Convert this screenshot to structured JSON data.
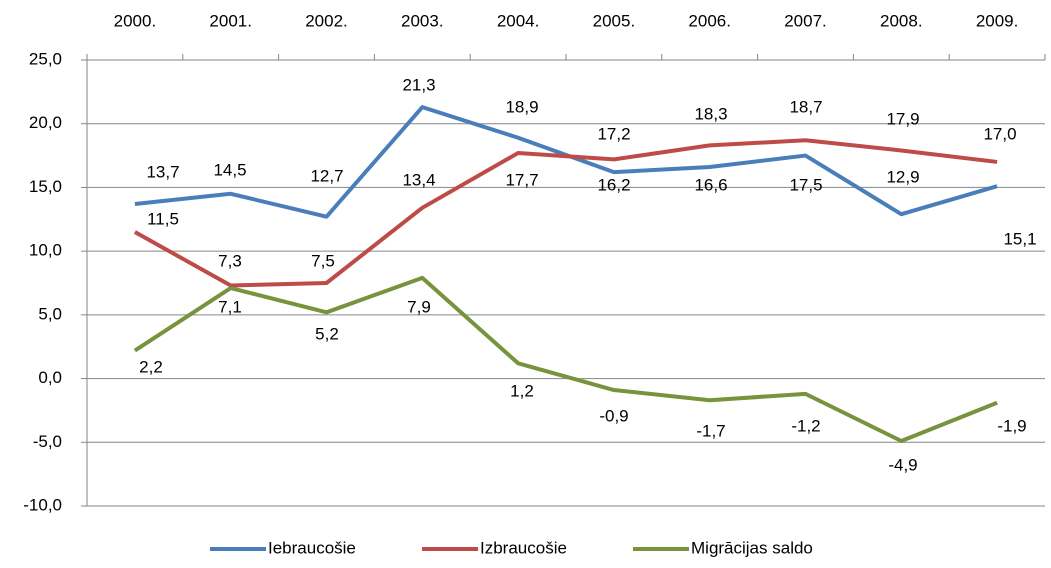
{
  "chart_data": {
    "type": "line",
    "categories": [
      "2000.",
      "2001.",
      "2002.",
      "2003.",
      "2004.",
      "2005.",
      "2006.",
      "2007.",
      "2008.",
      "2009."
    ],
    "series": [
      {
        "name": "Iebraucošie",
        "color": "#4a7ebb",
        "values": [
          13.7,
          14.5,
          12.7,
          21.3,
          18.9,
          16.2,
          16.6,
          17.5,
          12.9,
          15.1
        ],
        "value_labels": [
          "13,7",
          "14,5",
          "12,7",
          "21,3",
          "18,9",
          "16,2",
          "16,6",
          "17,5",
          "12,9",
          "15,1"
        ]
      },
      {
        "name": "Izbraucošie",
        "color": "#be4b48",
        "values": [
          11.5,
          7.3,
          7.5,
          13.4,
          17.7,
          17.2,
          18.3,
          18.7,
          17.9,
          17.0
        ],
        "value_labels": [
          "11,5",
          "7,3",
          "7,5",
          "13,4",
          "17,7",
          "17,2",
          "18,3",
          "18,7",
          "17,9",
          "17,0"
        ]
      },
      {
        "name": "Migrācijas saldo",
        "color": "#77933c",
        "values": [
          2.2,
          7.1,
          5.2,
          7.9,
          1.2,
          -0.9,
          -1.7,
          -1.2,
          -4.9,
          -1.9
        ],
        "value_labels": [
          "2,2",
          "7,1",
          "5,2",
          "7,9",
          "1,2",
          "-0,9",
          "-1,7",
          "-1,2",
          "-4,9",
          "-1,9"
        ]
      }
    ],
    "ylim": [
      -10,
      25
    ],
    "yticks": [
      {
        "value": -10,
        "label": "-10,0"
      },
      {
        "value": -5,
        "label": "-5,0"
      },
      {
        "value": 0,
        "label": "0,0"
      },
      {
        "value": 5,
        "label": "5,0"
      },
      {
        "value": 10,
        "label": "10,0"
      },
      {
        "value": 15,
        "label": "15,0"
      },
      {
        "value": 20,
        "label": "20,0"
      },
      {
        "value": 25,
        "label": "25,0"
      }
    ],
    "grid": true,
    "legend": "bottom"
  }
}
